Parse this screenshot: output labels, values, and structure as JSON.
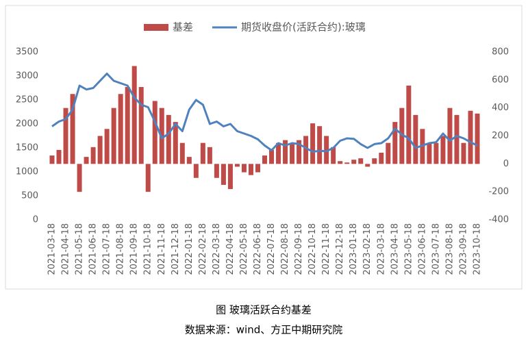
{
  "chart_data": {
    "type": "bar-line",
    "caption": "图  玻璃活跃合约基差",
    "source": "数据来源：wind、方正中期研究院",
    "categories": [
      "2021-03-18",
      null,
      "2021-04-18",
      null,
      "2021-05-18",
      null,
      "2021-06-18",
      null,
      "2021-07-18",
      null,
      "2021-08-18",
      null,
      "2021-09-18",
      null,
      "2021-10-18",
      null,
      "2021-11-18",
      null,
      "2021-12-18",
      null,
      "2022-01-18",
      null,
      "2022-02-18",
      null,
      "2022-03-18",
      null,
      "2022-04-18",
      null,
      "2022-05-18",
      null,
      "2022-06-18",
      null,
      "2022-07-18",
      null,
      "2022-08-18",
      null,
      "2022-09-18",
      null,
      "2022-10-18",
      null,
      "2022-11-18",
      null,
      "2022-12-18",
      null,
      "2023-01-18",
      null,
      "2023-02-18",
      null,
      "2023-03-18",
      null,
      "2023-04-18",
      null,
      "2023-05-18",
      null,
      "2023-06-18",
      null,
      "2023-07-18",
      null,
      "2023-08-18",
      null,
      "2023-09-18",
      null,
      "2023-10-18"
    ],
    "series": [
      {
        "name": "基差",
        "kind": "bar",
        "axis": "y2",
        "color": "#be4b48",
        "values": [
          60,
          100,
          400,
          500,
          -200,
          50,
          120,
          200,
          250,
          400,
          500,
          550,
          700,
          550,
          -200,
          450,
          400,
          350,
          300,
          150,
          50,
          -100,
          150,
          120,
          -100,
          -150,
          -180,
          -20,
          -60,
          -80,
          -60,
          60,
          100,
          150,
          170,
          150,
          170,
          200,
          290,
          270,
          200,
          120,
          20,
          10,
          30,
          40,
          -20,
          40,
          80,
          150,
          300,
          400,
          560,
          350,
          250,
          150,
          150,
          200,
          400,
          350,
          150,
          380,
          360
        ]
      },
      {
        "name": "期货收盘价(活跃合约):玻璃",
        "kind": "line",
        "axis": "y",
        "color": "#4f81bd",
        "values": [
          1950,
          2050,
          2100,
          2300,
          2800,
          2720,
          2750,
          2900,
          3050,
          2900,
          2850,
          2800,
          2550,
          2400,
          2350,
          2050,
          1700,
          1800,
          2000,
          1850,
          2300,
          2500,
          2400,
          2000,
          2050,
          1950,
          2000,
          1850,
          1800,
          1750,
          1680,
          1550,
          1450,
          1600,
          1550,
          1600,
          1580,
          1500,
          1420,
          1440,
          1430,
          1500,
          1650,
          1700,
          1690,
          1580,
          1500,
          1580,
          1600,
          1700,
          1900,
          1780,
          1700,
          1500,
          1550,
          1600,
          1620,
          1800,
          1650,
          1750,
          1700,
          1620,
          1550
        ]
      }
    ],
    "ylim": [
      0,
      3500
    ],
    "yticks": [
      0,
      500,
      1000,
      1500,
      2000,
      2500,
      3000,
      3500
    ],
    "y2lim": [
      -400,
      800
    ],
    "y2ticks": [
      -400,
      -200,
      0,
      200,
      400,
      600,
      800
    ],
    "legend": "top"
  }
}
